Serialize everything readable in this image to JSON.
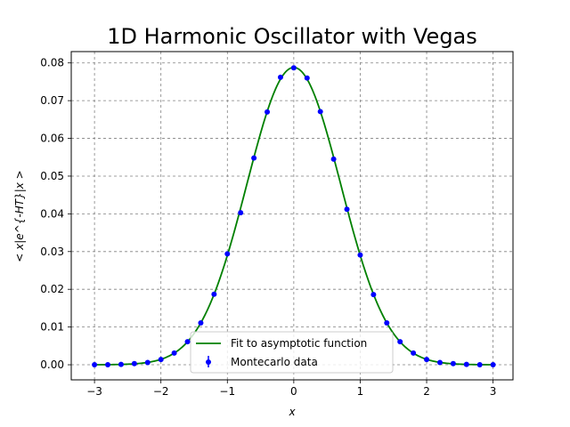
{
  "chart_data": {
    "type": "scatter",
    "title": "1D Harmonic Oscillator with Vegas",
    "xlabel": "x",
    "ylabel": "< x|e^{-HT}|x >",
    "xlim": [
      -3.35,
      3.3
    ],
    "ylim": [
      -0.004,
      0.083
    ],
    "xticks": [
      -3,
      -2,
      -1,
      0,
      1,
      2,
      3
    ],
    "xtick_labels": [
      "−3",
      "−2",
      "−1",
      "0",
      "1",
      "2",
      "3"
    ],
    "yticks": [
      0.0,
      0.01,
      0.02,
      0.03,
      0.04,
      0.05,
      0.06,
      0.07,
      0.08
    ],
    "ytick_labels": [
      "0.00",
      "0.01",
      "0.02",
      "0.03",
      "0.04",
      "0.05",
      "0.06",
      "0.07",
      "0.08"
    ],
    "grid": true,
    "legend_position": "bottom-center",
    "series": [
      {
        "name": "Fit to asymptotic function",
        "kind": "line",
        "color": "#008000",
        "function": "gaussian",
        "amplitude": 0.0788,
        "sigma": 0.7071,
        "x_range": [
          -3,
          3
        ]
      },
      {
        "name": "Montecarlo data",
        "kind": "errorbar",
        "color": "#0000ff",
        "x": [
          -3.0,
          -2.8,
          -2.6,
          -2.4,
          -2.2,
          -2.0,
          -1.8,
          -1.6,
          -1.4,
          -1.2,
          -1.0,
          -0.8,
          -0.6,
          -0.4,
          -0.2,
          0.0,
          0.2,
          0.4,
          0.6,
          0.8,
          1.0,
          1.2,
          1.4,
          1.6,
          1.8,
          2.0,
          2.2,
          2.4,
          2.6,
          2.8,
          3.0
        ],
        "y": [
          0.0,
          0.0,
          0.0001,
          0.0003,
          0.0006,
          0.0014,
          0.0031,
          0.0061,
          0.0111,
          0.0187,
          0.0294,
          0.0403,
          0.0548,
          0.067,
          0.0762,
          0.0787,
          0.076,
          0.0671,
          0.0545,
          0.0412,
          0.0291,
          0.0186,
          0.0111,
          0.0061,
          0.0031,
          0.0014,
          0.0006,
          0.0003,
          0.0001,
          0.0,
          0.0
        ]
      }
    ]
  }
}
